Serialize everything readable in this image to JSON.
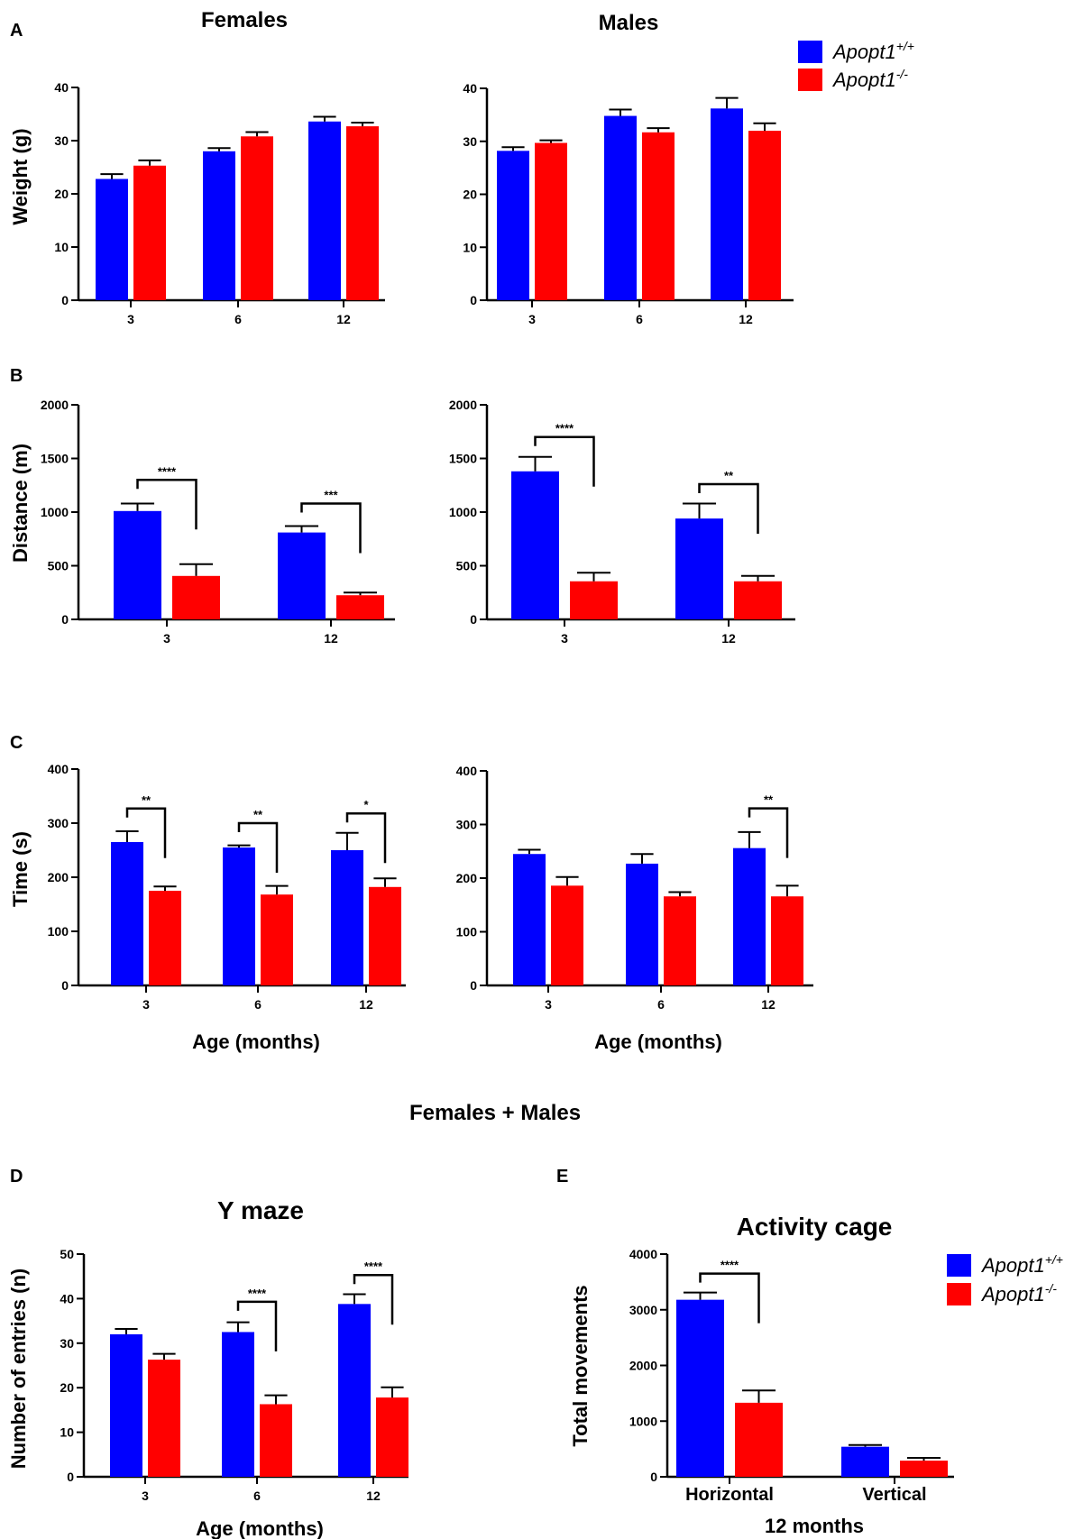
{
  "figure": {
    "panel_labels": {
      "A": "A",
      "B": "B",
      "C": "C",
      "D": "D",
      "E": "E"
    },
    "col_titles": {
      "females": "Females",
      "males": "Males"
    },
    "section_title": "Females + Males",
    "legend": {
      "wt": {
        "base": "Apopt1",
        "sup": "+/+",
        "color": "#0000ff"
      },
      "ko": {
        "base": "Apopt1",
        "sup": "-/-",
        "color": "#ff0000"
      }
    }
  },
  "chart_data": [
    {
      "id": "A-females",
      "type": "bar",
      "title": "Females",
      "ylabel": "Weight (g)",
      "xlabel": "",
      "categories": [
        "3",
        "6",
        "12"
      ],
      "ylim": [
        0,
        40
      ],
      "yticks": [
        0,
        10,
        20,
        30,
        40
      ],
      "series": [
        {
          "name": "Apopt1+/+",
          "color": "#0000ff",
          "values": [
            22.8,
            28.0,
            33.6
          ],
          "err": [
            0.9,
            0.6,
            0.9
          ]
        },
        {
          "name": "Apopt1-/-",
          "color": "#ff0000",
          "values": [
            25.3,
            30.8,
            32.7
          ],
          "err": [
            1.0,
            0.8,
            0.7
          ]
        }
      ],
      "annotations": []
    },
    {
      "id": "A-males",
      "type": "bar",
      "title": "Males",
      "ylabel": "",
      "xlabel": "",
      "categories": [
        "3",
        "6",
        "12"
      ],
      "ylim": [
        0,
        40
      ],
      "yticks": [
        0,
        10,
        20,
        30,
        40
      ],
      "series": [
        {
          "name": "Apopt1+/+",
          "color": "#0000ff",
          "values": [
            28.2,
            34.8,
            36.2
          ],
          "err": [
            0.7,
            1.2,
            2.0
          ]
        },
        {
          "name": "Apopt1-/-",
          "color": "#ff0000",
          "values": [
            29.7,
            31.7,
            32.0
          ],
          "err": [
            0.5,
            0.8,
            1.4
          ]
        }
      ],
      "annotations": []
    },
    {
      "id": "B-females",
      "type": "bar",
      "title": "",
      "ylabel": "Distance (m)",
      "xlabel": "",
      "categories": [
        "3",
        "12"
      ],
      "ylim": [
        0,
        2000
      ],
      "yticks": [
        0,
        500,
        1000,
        1500,
        2000
      ],
      "series": [
        {
          "name": "Apopt1+/+",
          "color": "#0000ff",
          "values": [
            1010,
            810
          ],
          "err": [
            70,
            60
          ]
        },
        {
          "name": "Apopt1-/-",
          "color": "#ff0000",
          "values": [
            405,
            225
          ],
          "err": [
            110,
            25
          ]
        }
      ],
      "annotations": [
        {
          "category": 0,
          "label": "****",
          "y": 1300
        },
        {
          "category": 1,
          "label": "***",
          "y": 1080
        }
      ]
    },
    {
      "id": "B-males",
      "type": "bar",
      "title": "",
      "ylabel": "",
      "xlabel": "",
      "categories": [
        "3",
        "12"
      ],
      "ylim": [
        0,
        2000
      ],
      "yticks": [
        0,
        500,
        1000,
        1500,
        2000
      ],
      "series": [
        {
          "name": "Apopt1+/+",
          "color": "#0000ff",
          "values": [
            1380,
            940
          ],
          "err": [
            135,
            140
          ]
        },
        {
          "name": "Apopt1-/-",
          "color": "#ff0000",
          "values": [
            355,
            355
          ],
          "err": [
            80,
            50
          ]
        }
      ],
      "annotations": [
        {
          "category": 0,
          "label": "****",
          "y": 1700
        },
        {
          "category": 1,
          "label": "**",
          "y": 1260
        }
      ]
    },
    {
      "id": "C-females",
      "type": "bar",
      "title": "",
      "ylabel": "Time (s)",
      "xlabel": "Age (months)",
      "categories": [
        "3",
        "6",
        "12"
      ],
      "ylim": [
        0,
        400
      ],
      "yticks": [
        0,
        100,
        200,
        300,
        400
      ],
      "series": [
        {
          "name": "Apopt1+/+",
          "color": "#0000ff",
          "values": [
            265,
            255,
            250
          ],
          "err": [
            20,
            4,
            32
          ]
        },
        {
          "name": "Apopt1-/-",
          "color": "#ff0000",
          "values": [
            175,
            168,
            182
          ],
          "err": [
            8,
            16,
            16
          ]
        }
      ],
      "annotations": [
        {
          "category": 0,
          "label": "**",
          "y": 327
        },
        {
          "category": 1,
          "label": "**",
          "y": 300
        },
        {
          "category": 2,
          "label": "*",
          "y": 318
        }
      ]
    },
    {
      "id": "C-males",
      "type": "bar",
      "title": "",
      "ylabel": "",
      "xlabel": "Age (months)",
      "categories": [
        "3",
        "6",
        "12"
      ],
      "ylim": [
        0,
        400
      ],
      "yticks": [
        0,
        100,
        200,
        300,
        400
      ],
      "series": [
        {
          "name": "Apopt1+/+",
          "color": "#0000ff",
          "values": [
            245,
            227,
            256
          ],
          "err": [
            8,
            18,
            30
          ]
        },
        {
          "name": "Apopt1-/-",
          "color": "#ff0000",
          "values": [
            186,
            166,
            166
          ],
          "err": [
            16,
            8,
            20
          ]
        }
      ],
      "annotations": [
        {
          "category": 2,
          "label": "**",
          "y": 330
        }
      ]
    },
    {
      "id": "D-ymaze",
      "type": "bar",
      "title": "Y maze",
      "ylabel": "Number of entries (n)",
      "xlabel": "Age (months)",
      "categories": [
        "3",
        "6",
        "12"
      ],
      "ylim": [
        0,
        50
      ],
      "yticks": [
        0,
        10,
        20,
        30,
        40,
        50
      ],
      "series": [
        {
          "name": "Apopt1+/+",
          "color": "#0000ff",
          "values": [
            32,
            32.5,
            38.8
          ],
          "err": [
            1.2,
            2.2,
            2.2
          ]
        },
        {
          "name": "Apopt1-/-",
          "color": "#ff0000",
          "values": [
            26.3,
            16.3,
            17.8
          ],
          "err": [
            1.3,
            2.0,
            2.3
          ]
        }
      ],
      "annotations": [
        {
          "category": 1,
          "label": "****",
          "y": 39.3
        },
        {
          "category": 2,
          "label": "****",
          "y": 45.3
        }
      ]
    },
    {
      "id": "E-activity",
      "type": "bar",
      "title": "Activity cage",
      "ylabel": "Total movements",
      "xlabel": "12 months",
      "categories": [
        "Horizontal",
        "Vertical"
      ],
      "ylim": [
        0,
        4000
      ],
      "yticks": [
        0,
        1000,
        2000,
        3000,
        4000
      ],
      "series": [
        {
          "name": "Apopt1+/+",
          "color": "#0000ff",
          "values": [
            3180,
            540
          ],
          "err": [
            130,
            30
          ]
        },
        {
          "name": "Apopt1-/-",
          "color": "#ff0000",
          "values": [
            1330,
            290
          ],
          "err": [
            220,
            50
          ]
        }
      ],
      "annotations": [
        {
          "category": 0,
          "label": "****",
          "y": 3650
        }
      ]
    }
  ]
}
